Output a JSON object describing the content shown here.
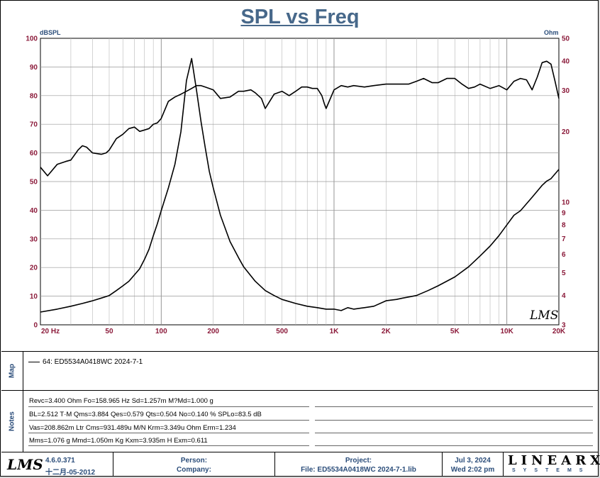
{
  "chart_data": {
    "type": "line",
    "title": "SPL vs Freq",
    "xscale": "log",
    "xlim": [
      20,
      20000
    ],
    "x_ticks": [
      {
        "value": 20,
        "label": "20  Hz"
      },
      {
        "value": 50,
        "label": "50"
      },
      {
        "value": 100,
        "label": "100"
      },
      {
        "value": 200,
        "label": "200"
      },
      {
        "value": 500,
        "label": "500"
      },
      {
        "value": 1000,
        "label": "1K"
      },
      {
        "value": 2000,
        "label": "2K"
      },
      {
        "value": 5000,
        "label": "5K"
      },
      {
        "value": 10000,
        "label": "10K"
      },
      {
        "value": 20000,
        "label": "20K"
      }
    ],
    "ylabel_left": "dBSPL",
    "ylim_left": [
      0,
      100
    ],
    "y_ticks_left": [
      0,
      10,
      20,
      30,
      40,
      50,
      60,
      70,
      80,
      90,
      100
    ],
    "ylabel_right": "Ohm",
    "yscale_right": "log",
    "ylim_right": [
      3,
      50
    ],
    "y_ticks_right": [
      3,
      4,
      5,
      6,
      7,
      8,
      9,
      10,
      20,
      30,
      40,
      50
    ],
    "grid": true,
    "series": [
      {
        "axis": "left",
        "x": [
          20,
          22,
          25,
          28,
          30,
          33,
          35,
          37,
          40,
          45,
          48,
          50,
          55,
          60,
          65,
          70,
          75,
          80,
          85,
          90,
          95,
          100,
          110,
          120,
          130,
          140,
          150,
          160,
          170,
          180,
          190,
          200,
          220,
          250,
          280,
          300,
          330,
          350,
          380,
          400,
          450,
          500,
          550,
          600,
          650,
          700,
          750,
          800,
          850,
          880,
          900,
          1000,
          1100,
          1200,
          1300,
          1500,
          1700,
          2000,
          2300,
          2500,
          2700,
          3000,
          3300,
          3700,
          4000,
          4500,
          5000,
          5500,
          6000,
          6500,
          7000,
          8000,
          9000,
          10000,
          11000,
          12000,
          13000,
          14000,
          15000,
          16000,
          17000,
          18000,
          19000,
          20000
        ],
        "values": [
          55,
          52,
          56,
          57,
          57.5,
          61,
          62.5,
          62,
          60,
          59.5,
          60,
          61,
          65,
          66.5,
          68.5,
          69,
          67.5,
          68,
          68.5,
          70,
          70.5,
          72,
          78,
          79.5,
          80.5,
          81.5,
          82.5,
          83.5,
          83.5,
          83,
          82.5,
          82,
          79,
          79.5,
          81.5,
          81.5,
          82,
          81,
          79,
          75.5,
          80.5,
          81.5,
          80,
          81.5,
          83,
          83,
          82.5,
          82.5,
          80,
          77,
          75.5,
          82,
          83.5,
          83,
          83.5,
          83,
          83.5,
          84,
          84,
          84,
          84,
          85,
          86,
          84.5,
          84.5,
          86,
          86,
          84,
          82.5,
          83,
          84,
          82.5,
          83.5,
          82,
          85,
          86,
          85.5,
          82,
          86.5,
          91.5,
          92,
          91,
          85,
          79
        ]
      },
      {
        "axis": "right",
        "x": [
          20,
          25,
          30,
          35,
          40,
          45,
          50,
          55,
          60,
          65,
          70,
          75,
          80,
          85,
          90,
          95,
          100,
          110,
          120,
          130,
          140,
          150,
          160,
          170,
          180,
          190,
          200,
          220,
          250,
          280,
          300,
          350,
          400,
          450,
          500,
          600,
          700,
          800,
          900,
          1000,
          1100,
          1200,
          1300,
          1500,
          1700,
          2000,
          2300,
          2500,
          3000,
          3500,
          4000,
          5000,
          6000,
          7000,
          8000,
          9000,
          10000,
          11000,
          12000,
          14000,
          16000,
          17000,
          18000,
          20000
        ],
        "values": [
          3.4,
          3.5,
          3.6,
          3.7,
          3.8,
          3.9,
          4.0,
          4.2,
          4.4,
          4.6,
          4.9,
          5.2,
          5.7,
          6.3,
          7.2,
          8.1,
          9.2,
          11.5,
          14.5,
          20,
          33,
          41,
          30,
          22,
          17,
          13.5,
          11.5,
          8.8,
          6.8,
          5.8,
          5.3,
          4.6,
          4.2,
          4.0,
          3.85,
          3.7,
          3.6,
          3.55,
          3.5,
          3.5,
          3.45,
          3.55,
          3.5,
          3.55,
          3.6,
          3.8,
          3.85,
          3.9,
          4.0,
          4.2,
          4.4,
          4.8,
          5.3,
          5.9,
          6.5,
          7.2,
          8.0,
          8.8,
          9.2,
          10.5,
          11.8,
          12.3,
          12.6,
          13.8
        ]
      }
    ]
  },
  "map": {
    "section_label": "Map",
    "entry": "64: ED5534A0418WC 2024-7-1"
  },
  "notes": {
    "section_label": "Notes",
    "lines": [
      "Revc=3.400 Ohm  Fo=158.965 Hz  Sd=1.257m M?Md=1.000 g",
      "BL=2.512 T·M  Qms=3.884  Qes=0.579  Qts=0.504  No=0.140 %  SPLo=83.5 dB",
      "Vas=208.862m Ltr  Cms=931.489u M/N  Krm=3.349u Ohm  Erm=1.234",
      "Mms=1.076 g  Mmd=1.050m Kg  Kxm=3.935m H  Exm=0.611"
    ]
  },
  "footer": {
    "logo": "LMS",
    "version": "4.6.0.371",
    "date_build": "十二月-05-2012",
    "person_label": "Person:",
    "company_label": "Company:",
    "project_label": "Project:",
    "file_label": "File: ED5534A0418WC 2024-7-1.lib",
    "date": "Jul  3, 2024",
    "time": "Wed  2:02 pm",
    "brand": "LINEARX",
    "brand_sub": "SYSTEMS"
  },
  "watermark_logo": "LMS",
  "colors": {
    "title": "#47688a",
    "tick_label": "#8b1a3a",
    "axis_label": "#2b4d7a",
    "grid": "#b8b8b8",
    "curve": "#000000"
  }
}
